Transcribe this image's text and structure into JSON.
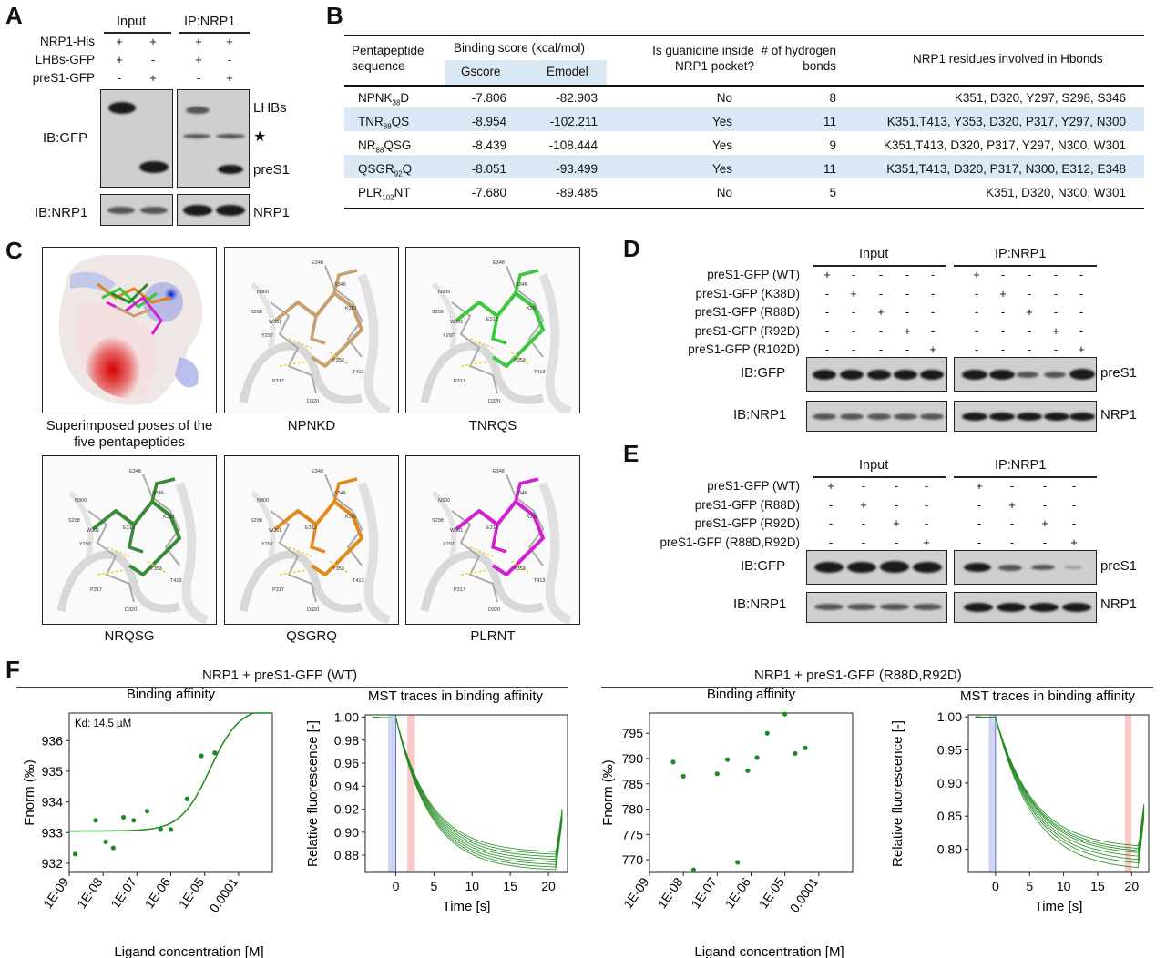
{
  "panels": {
    "A": "A",
    "B": "B",
    "C": "C",
    "D": "D",
    "E": "E",
    "F": "F"
  },
  "panelA": {
    "input_header": "Input",
    "ip_header": "IP:NRP1",
    "row_labels": [
      "NRP1-His",
      "LHBs-GFP",
      "preS1-GFP"
    ],
    "input_signs": [
      [
        "+",
        "+"
      ],
      [
        "+",
        "-"
      ],
      [
        "-",
        "+"
      ]
    ],
    "ip_signs": [
      [
        "+",
        "+"
      ],
      [
        "+",
        "-"
      ],
      [
        "-",
        "+"
      ]
    ],
    "ib_gfp": "IB:GFP",
    "ib_nrp1": "IB:NRP1",
    "band_lhbs": "LHBs",
    "band_star": "★",
    "band_pres1": "preS1",
    "band_nrp1": "NRP1"
  },
  "panelB": {
    "headers": {
      "seq": "Pentapeptide sequence",
      "binding": "Binding score (kcal/mol)",
      "gscore": "Gscore",
      "emodel": "Emodel",
      "guanidine": "Is guanidine inside NRP1 pocket?",
      "hbonds": "# of hydrogen bonds",
      "residues": "NRP1 residues involved in Hbonds"
    },
    "rows": [
      {
        "pre": "NPNK",
        "sub": "38",
        "post": "D",
        "gscore": "-7.806",
        "emodel": "-82.903",
        "guan": "No",
        "hb": "8",
        "res": "K351, D320, Y297, S298, S346"
      },
      {
        "pre": "TNR",
        "sub": "88",
        "post": "QS",
        "gscore": "-8.954",
        "emodel": "-102.211",
        "guan": "Yes",
        "hb": "11",
        "res": "K351,T413, Y353, D320, P317, Y297, N300"
      },
      {
        "pre": "NR",
        "sub": "88",
        "post": "QSG",
        "gscore": "-8.439",
        "emodel": "-108.444",
        "guan": "Yes",
        "hb": "9",
        "res": "K351,T413, D320, P317, Y297, N300, W301"
      },
      {
        "pre": "QSGR",
        "sub": "92",
        "post": "Q",
        "gscore": "-8.051",
        "emodel": "-93.499",
        "guan": "Yes",
        "hb": "11",
        "res": "K351,T413, D320, P317, N300, E312, E348"
      },
      {
        "pre": "PLR",
        "sub": "102",
        "post": "NT",
        "gscore": "-7.680",
        "emodel": "-89.485",
        "guan": "No",
        "hb": "5",
        "res": "K351, D320, N300, W301"
      }
    ]
  },
  "panelC": {
    "captions": [
      "Superimposed poses of the five pentapeptides",
      "NPNKD",
      "TNRQS",
      "NRQSG",
      "QSGRQ",
      "PLRNT"
    ],
    "residue_labels": [
      "E348",
      "N300",
      "S346",
      "S298",
      "W301",
      "K351",
      "Y297",
      "Y353",
      "T413",
      "P317",
      "D320",
      "E312"
    ]
  },
  "panelD": {
    "input_header": "Input",
    "ip_header": "IP:NRP1",
    "rows": [
      "preS1-GFP (WT)",
      "preS1-GFP (K38D)",
      "preS1-GFP (R88D)",
      "preS1-GFP (R92D)",
      "preS1-GFP (R102D)"
    ],
    "ib_gfp": "IB:GFP",
    "ib_nrp1": "IB:NRP1",
    "band_pres1": "preS1",
    "band_nrp1": "NRP1"
  },
  "panelE": {
    "input_header": "Input",
    "ip_header": "IP:NRP1",
    "rows": [
      "preS1-GFP (WT)",
      "preS1-GFP (R88D)",
      "preS1-GFP (R92D)",
      "preS1-GFP (R88D,R92D)"
    ],
    "ib_gfp": "IB:GFP",
    "ib_nrp1": "IB:NRP1",
    "band_pres1": "preS1",
    "band_nrp1": "NRP1"
  },
  "panelF": {
    "left_title": "NRP1 + preS1-GFP (WT)",
    "right_title": "NRP1 + preS1-GFP (R88D,R92D)",
    "binding_title": "Binding affinity",
    "mst_title": "MST traces in binding affinity",
    "kd_label": "Kd: 14.5 µM",
    "x_label_conc": "Ligand concentration [M]",
    "y_label_fnorm": "Fnorm (‰)",
    "x_label_time": "Time [s]",
    "y_label_rel": "Relative fluorescence [-]"
  },
  "chart_data": [
    {
      "type": "scatter",
      "title": "Binding affinity",
      "subtitle": "NRP1 + preS1-GFP (WT)",
      "xlabel": "Ligand concentration [M]",
      "ylabel": "Fnorm (‰)",
      "xscale": "log",
      "xlim": [
        1e-09,
        0.001
      ],
      "ylim": [
        931.7,
        936.9
      ],
      "x_ticks": [
        "1E-09",
        "1E-08",
        "1E-07",
        "1E-06",
        "1E-05",
        "0.0001"
      ],
      "y_ticks": [
        932,
        933,
        934,
        935,
        936
      ],
      "points_x": [
        1.5e-09,
        6e-09,
        1.2e-08,
        2e-08,
        4e-08,
        8e-08,
        2e-07,
        5e-07,
        1e-06,
        3e-06,
        8e-06,
        2e-05
      ],
      "points_y": [
        932.3,
        933.4,
        932.7,
        932.5,
        933.5,
        933.4,
        933.7,
        933.1,
        933.1,
        934.1,
        935.5,
        935.6
      ],
      "fit": {
        "kd": 1.45e-05,
        "bottom": 933.05,
        "top": 937.1
      },
      "annotation": "Kd: 14.5 µM"
    },
    {
      "type": "line",
      "title": "MST traces in binding affinity",
      "xlabel": "Time [s]",
      "ylabel": "Relative fluorescence [-]",
      "xlim": [
        -4,
        22.5
      ],
      "ylim": [
        0.865,
        1.002
      ],
      "x_ticks": [
        0,
        5,
        10,
        15,
        20
      ],
      "y_ticks": [
        0.88,
        0.9,
        0.92,
        0.94,
        0.96,
        0.98,
        1.0
      ],
      "cold_region": [
        -1,
        0
      ],
      "hot_region": [
        1.5,
        2.5
      ],
      "series_end_values": [
        0.867,
        0.869,
        0.871,
        0.873,
        0.875,
        0.877,
        0.879,
        0.881
      ],
      "decay_tau": 4.5
    },
    {
      "type": "scatter",
      "title": "Binding affinity",
      "subtitle": "NRP1 + preS1-GFP (R88D,R92D)",
      "xlabel": "Ligand concentration [M]",
      "ylabel": "Fnorm (‰)",
      "xscale": "log",
      "xlim": [
        1e-09,
        0.001
      ],
      "ylim": [
        767.5,
        799
      ],
      "x_ticks": [
        "1E-09",
        "1E-08",
        "1E-07",
        "1E-06",
        "1E-05",
        "0.0001"
      ],
      "y_ticks": [
        770,
        775,
        780,
        785,
        790,
        795
      ],
      "points_x": [
        5e-09,
        1e-08,
        2e-08,
        1e-07,
        2e-07,
        4e-07,
        8e-07,
        1.5e-06,
        3e-06,
        1e-05,
        2e-05,
        4e-05
      ],
      "points_y": [
        789.3,
        786.5,
        768.0,
        787.0,
        789.8,
        769.5,
        787.6,
        790.2,
        795.0,
        798.8,
        791.0,
        792.1
      ]
    },
    {
      "type": "line",
      "title": "MST traces in binding affinity",
      "xlabel": "Time [s]",
      "ylabel": "Relative fluorescence [-]",
      "xlim": [
        -4,
        22.5
      ],
      "ylim": [
        0.765,
        1.003
      ],
      "x_ticks": [
        0,
        5,
        10,
        15,
        20
      ],
      "y_ticks": [
        0.8,
        0.85,
        0.9,
        0.95,
        1.0
      ],
      "cold_region": [
        -1,
        0
      ],
      "hot_region": [
        19,
        20
      ],
      "series_end_values": [
        0.768,
        0.775,
        0.78,
        0.785,
        0.79,
        0.793,
        0.796,
        0.8
      ],
      "decay_tau": 5.5
    }
  ],
  "colors": {
    "green": "#1f8a1f",
    "highlight": "#dbe8f5",
    "cold": "#b8c4f0",
    "hot": "#f4b8b8"
  }
}
